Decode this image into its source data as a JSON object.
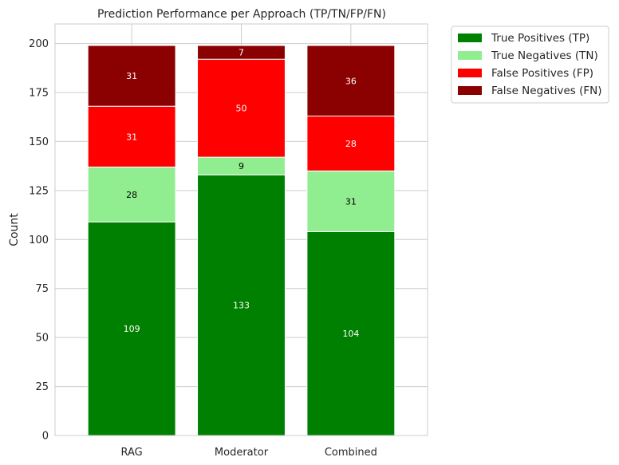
{
  "chart_data": {
    "type": "bar",
    "stacked": true,
    "title": "Prediction Performance per Approach (TP/TN/FP/FN)",
    "xlabel": "",
    "ylabel": "Count",
    "categories": [
      "RAG",
      "Moderator",
      "Combined"
    ],
    "ylim": [
      0,
      210
    ],
    "yticks": [
      0,
      25,
      50,
      75,
      100,
      125,
      150,
      175,
      200
    ],
    "grid": true,
    "legend_position": "outside-right-top",
    "series": [
      {
        "name": "True Positives (TP)",
        "color": "#008000",
        "label_color": "#ffffff",
        "values": [
          109,
          133,
          104
        ]
      },
      {
        "name": "True Negatives (TN)",
        "color": "#90ee90",
        "label_color": "#000000",
        "values": [
          28,
          9,
          31
        ]
      },
      {
        "name": "False Positives (FP)",
        "color": "#ff0000",
        "label_color": "#ffffff",
        "values": [
          31,
          50,
          28
        ]
      },
      {
        "name": "False Negatives (FN)",
        "color": "#8b0000",
        "label_color": "#ffffff",
        "values": [
          31,
          7,
          36
        ]
      }
    ]
  }
}
